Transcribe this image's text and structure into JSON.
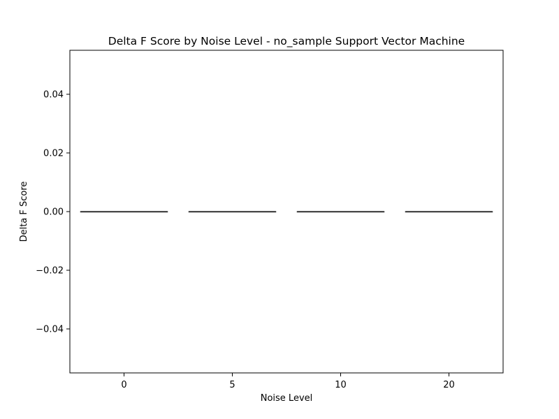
{
  "chart_data": {
    "type": "box",
    "title": "Delta F Score by Noise Level - no_sample Support Vector Machine",
    "xlabel": "Noise Level",
    "ylabel": "Delta F Score",
    "categories": [
      "0",
      "5",
      "10",
      "20"
    ],
    "series": [
      {
        "values": [
          {
            "min": 0.0,
            "q1": 0.0,
            "median": 0.0,
            "q3": 0.0,
            "max": 0.0
          },
          {
            "min": 0.0,
            "q1": 0.0,
            "median": 0.0,
            "q3": 0.0,
            "max": 0.0
          },
          {
            "min": 0.0,
            "q1": 0.0,
            "median": 0.0,
            "q3": 0.0,
            "max": 0.0
          },
          {
            "min": 0.0,
            "q1": 0.0,
            "median": 0.0,
            "q3": 0.0,
            "max": 0.0
          }
        ]
      }
    ],
    "ylim": [
      -0.055,
      0.055
    ],
    "yticks": [
      -0.04,
      -0.02,
      0.0,
      0.02,
      0.04
    ],
    "ytick_labels": [
      "−0.04",
      "−0.02",
      "0.00",
      "0.02",
      "0.04"
    ],
    "grid": false,
    "legend": "none",
    "colors": {
      "box_line": "#3d3d3d",
      "axis": "#000000",
      "background": "#ffffff"
    }
  }
}
